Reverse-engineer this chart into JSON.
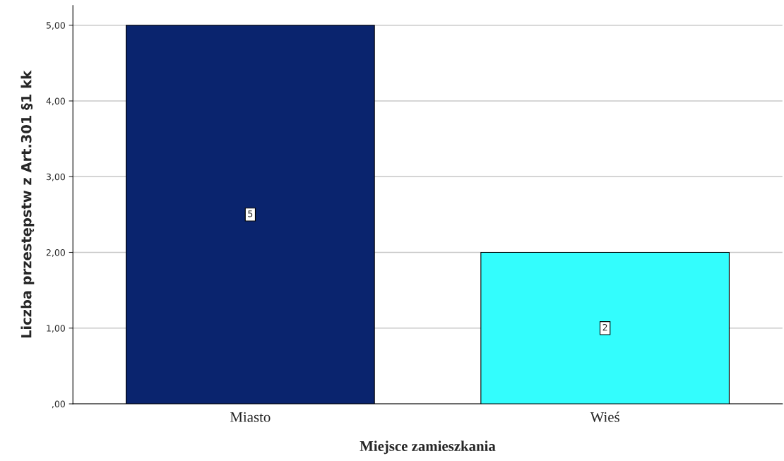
{
  "chart_data": {
    "type": "bar",
    "xlabel": "Miejsce zamieszkania",
    "ylabel": "Liczba przestępstw z Art.301 §1 kk",
    "categories": [
      "Miasto",
      "Wieś"
    ],
    "values": [
      5,
      2
    ],
    "colors": [
      "#0a246e",
      "#33fdfd"
    ],
    "ylim": [
      0,
      5.26
    ],
    "yticks": [
      {
        "value": 0,
        "label": ",00"
      },
      {
        "value": 1,
        "label": "1,00"
      },
      {
        "value": 2,
        "label": "2,00"
      },
      {
        "value": 3,
        "label": "3,00"
      },
      {
        "value": 4,
        "label": "4,00"
      },
      {
        "value": 5,
        "label": "5,00"
      }
    ],
    "grid": "y",
    "data_labels": true
  }
}
